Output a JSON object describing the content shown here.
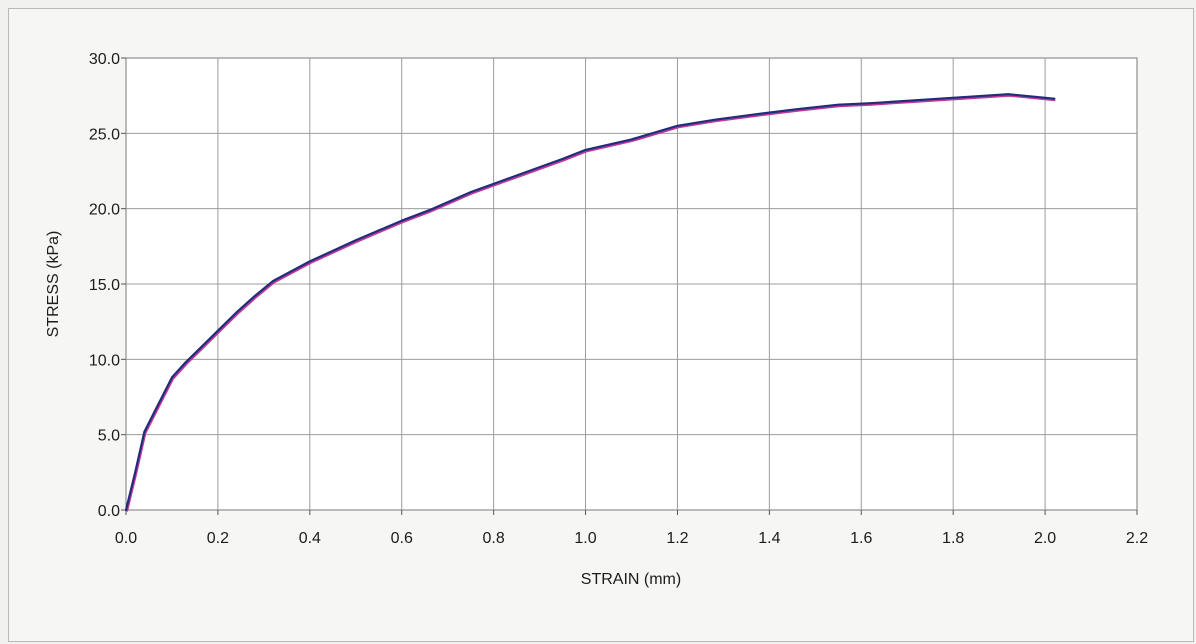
{
  "chart_data": {
    "type": "line",
    "xlabel": "STRAIN (mm)",
    "ylabel": "STRESS (kPa)",
    "xlim": [
      0.0,
      2.2
    ],
    "ylim": [
      0.0,
      30.0
    ],
    "x_ticks": [
      0.0,
      0.2,
      0.4,
      0.6,
      0.8,
      1.0,
      1.2,
      1.4,
      1.6,
      1.8,
      2.0,
      2.2
    ],
    "x_tick_labels": [
      "0.0",
      "0.2",
      "0.4",
      "0.6",
      "0.8",
      "1.0",
      "1.2",
      "1.4",
      "1.6",
      "1.8",
      "2.0",
      "2.2"
    ],
    "y_ticks": [
      0.0,
      5.0,
      10.0,
      15.0,
      20.0,
      25.0,
      30.0
    ],
    "y_tick_labels": [
      "0.0",
      "5.0",
      "10.0",
      "15.0",
      "20.0",
      "25.0",
      "30.0"
    ],
    "grid": true,
    "legend": "none",
    "series": [
      {
        "color": "#1f2d7a",
        "shadow_color": "#c0399a",
        "x": [
          0.0,
          0.02,
          0.04,
          0.07,
          0.1,
          0.13,
          0.16,
          0.2,
          0.24,
          0.28,
          0.32,
          0.4,
          0.5,
          0.6,
          0.66,
          0.75,
          0.85,
          0.95,
          1.0,
          1.1,
          1.2,
          1.28,
          1.38,
          1.46,
          1.55,
          1.62,
          1.72,
          1.82,
          1.92,
          2.02
        ],
        "y": [
          0.0,
          2.5,
          5.2,
          7.0,
          8.8,
          9.8,
          10.7,
          11.9,
          13.1,
          14.2,
          15.2,
          16.5,
          17.9,
          19.2,
          19.9,
          21.1,
          22.2,
          23.3,
          23.9,
          24.6,
          25.5,
          25.9,
          26.3,
          26.6,
          26.9,
          27.0,
          27.2,
          27.4,
          27.6,
          27.3
        ]
      }
    ]
  }
}
